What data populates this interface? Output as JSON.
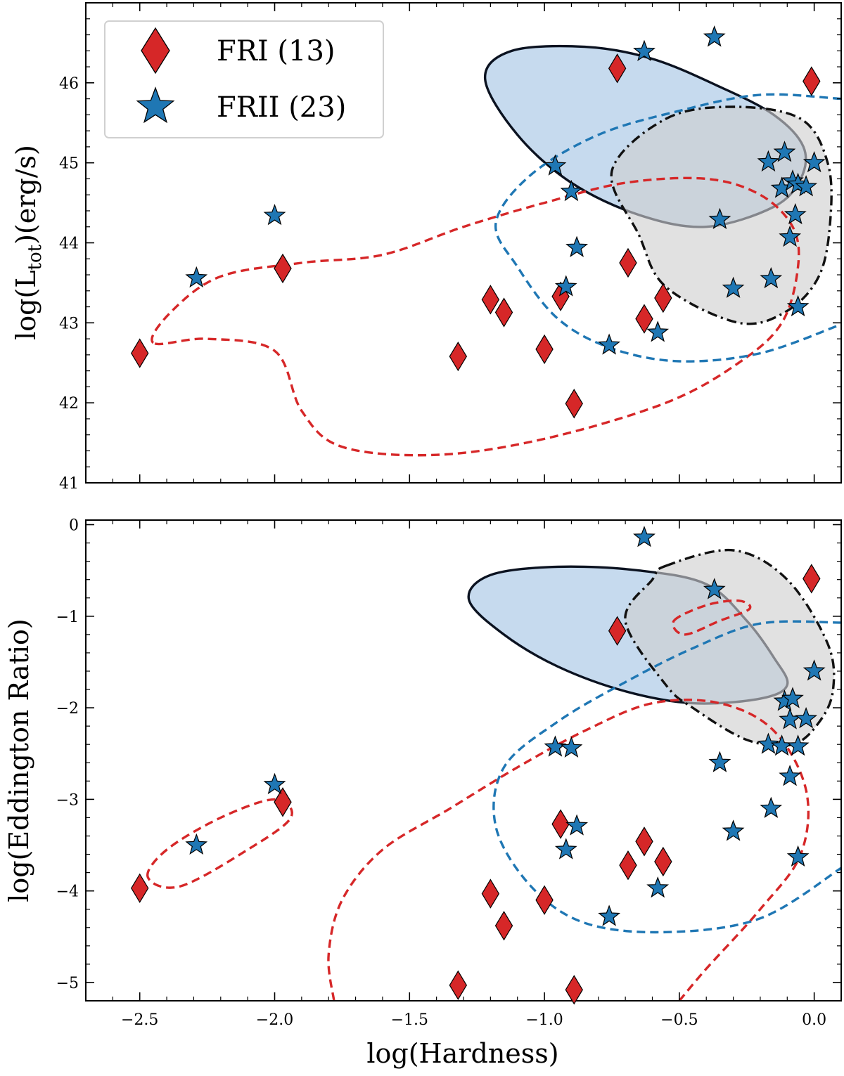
{
  "chart_data": [
    {
      "type": "scatter",
      "panel": "top",
      "ylabel_prefix": "log(L",
      "ylabel_sub": "tot",
      "ylabel_suffix": ")(erg/s)",
      "xlim": [
        -2.7,
        0.1
      ],
      "ylim": [
        41.0,
        47.0
      ],
      "yticks": [
        41,
        42,
        43,
        44,
        45,
        46
      ],
      "ytick_labels": [
        "41",
        "42",
        "43",
        "44",
        "45",
        "46"
      ],
      "legend": {
        "position": "top-left",
        "entries": [
          {
            "label": "FRI (13)",
            "marker": "diamond",
            "color": "#d62728"
          },
          {
            "label": "FRII (23)",
            "marker": "star",
            "color": "#1f77b4"
          }
        ]
      },
      "series": [
        {
          "name": "FRI (13)",
          "marker": "diamond",
          "color": "#d62728",
          "points": [
            [
              -2.5,
              42.62
            ],
            [
              -1.97,
              43.68
            ],
            [
              -1.32,
              42.58
            ],
            [
              -1.2,
              43.29
            ],
            [
              -1.15,
              43.13
            ],
            [
              -1.0,
              42.67
            ],
            [
              -0.94,
              43.33
            ],
            [
              -0.89,
              41.99
            ],
            [
              -0.73,
              46.18
            ],
            [
              -0.69,
              43.75
            ],
            [
              -0.63,
              43.05
            ],
            [
              -0.56,
              43.31
            ],
            [
              -0.01,
              46.02
            ]
          ]
        },
        {
          "name": "FRII (23)",
          "marker": "star",
          "color": "#1f77b4",
          "points": [
            [
              -2.29,
              43.56
            ],
            [
              -2.0,
              44.34
            ],
            [
              -0.96,
              44.96
            ],
            [
              -0.92,
              43.45
            ],
            [
              -0.9,
              44.64
            ],
            [
              -0.88,
              43.94
            ],
            [
              -0.76,
              42.72
            ],
            [
              -0.63,
              46.39
            ],
            [
              -0.58,
              42.88
            ],
            [
              -0.37,
              46.57
            ],
            [
              -0.35,
              44.29
            ],
            [
              -0.3,
              43.43
            ],
            [
              -0.17,
              45.01
            ],
            [
              -0.16,
              43.55
            ],
            [
              -0.12,
              44.68
            ],
            [
              -0.11,
              45.13
            ],
            [
              -0.09,
              44.07
            ],
            [
              -0.08,
              44.77
            ],
            [
              -0.07,
              44.35
            ],
            [
              -0.06,
              44.73
            ],
            [
              -0.06,
              43.2
            ],
            [
              -0.03,
              44.7
            ],
            [
              0.0,
              45.0
            ]
          ]
        }
      ],
      "contours": [
        {
          "name": "FRI contour",
          "style": "dashed",
          "color": "#d62728",
          "fill": "none",
          "path": [
            [
              -2.45,
              42.75
            ],
            [
              -2.38,
              43.15
            ],
            [
              -2.2,
              43.58
            ],
            [
              -1.9,
              43.75
            ],
            [
              -1.6,
              43.85
            ],
            [
              -1.3,
              44.2
            ],
            [
              -1.0,
              44.5
            ],
            [
              -0.7,
              44.75
            ],
            [
              -0.4,
              44.8
            ],
            [
              -0.2,
              44.6
            ],
            [
              -0.08,
              44.2
            ],
            [
              -0.06,
              43.7
            ],
            [
              -0.12,
              43.0
            ],
            [
              -0.28,
              42.5
            ],
            [
              -0.55,
              42.0
            ],
            [
              -1.0,
              41.55
            ],
            [
              -1.4,
              41.35
            ],
            [
              -1.75,
              41.45
            ],
            [
              -1.9,
              41.9
            ],
            [
              -2.0,
              42.65
            ],
            [
              -2.25,
              42.8
            ],
            [
              -2.45,
              42.75
            ]
          ]
        },
        {
          "name": "FRII contour",
          "style": "dashed",
          "color": "#1f77b4",
          "fill": "none",
          "path": [
            [
              0.1,
              45.8
            ],
            [
              -0.2,
              45.85
            ],
            [
              -0.5,
              45.65
            ],
            [
              -0.8,
              45.35
            ],
            [
              -1.05,
              44.85
            ],
            [
              -1.18,
              44.25
            ],
            [
              -1.1,
              43.7
            ],
            [
              -0.95,
              43.05
            ],
            [
              -0.75,
              42.68
            ],
            [
              -0.5,
              42.52
            ],
            [
              -0.2,
              42.62
            ],
            [
              0.1,
              42.98
            ]
          ]
        },
        {
          "name": "blue filled contour",
          "style": "solid",
          "color": "#0b1220",
          "fill": "#a3c4e3",
          "path": [
            [
              -0.85,
              46.45
            ],
            [
              -0.6,
              46.3
            ],
            [
              -0.35,
              45.95
            ],
            [
              -0.15,
              45.6
            ],
            [
              -0.04,
              45.2
            ],
            [
              -0.05,
              44.8
            ],
            [
              -0.15,
              44.45
            ],
            [
              -0.4,
              44.2
            ],
            [
              -0.65,
              44.35
            ],
            [
              -0.9,
              44.75
            ],
            [
              -1.1,
              45.35
            ],
            [
              -1.22,
              46.05
            ],
            [
              -1.12,
              46.4
            ],
            [
              -0.85,
              46.45
            ]
          ]
        },
        {
          "name": "grey filled contour",
          "style": "dashdot",
          "color": "#111111",
          "fill": "#cfcfcf",
          "path": [
            [
              -0.55,
              45.55
            ],
            [
              -0.3,
              45.7
            ],
            [
              -0.05,
              45.55
            ],
            [
              0.05,
              45.0
            ],
            [
              0.06,
              44.3
            ],
            [
              0.02,
              43.6
            ],
            [
              -0.1,
              43.15
            ],
            [
              -0.28,
              43.0
            ],
            [
              -0.55,
              43.45
            ],
            [
              -0.65,
              44.1
            ],
            [
              -0.75,
              44.9
            ],
            [
              -0.55,
              45.55
            ]
          ]
        }
      ]
    },
    {
      "type": "scatter",
      "panel": "bottom",
      "xlabel": "log(Hardness)",
      "ylabel": "log(Eddington Ratio)",
      "xlim": [
        -2.7,
        0.1
      ],
      "ylim": [
        -5.2,
        0.05
      ],
      "xticks": [
        -2.5,
        -2.0,
        -1.5,
        -1.0,
        -0.5,
        0.0
      ],
      "xtick_labels": [
        "−2.5",
        "−2.0",
        "−1.5",
        "−1.0",
        "−0.5",
        "0.0"
      ],
      "yticks": [
        -5,
        -4,
        -3,
        -2,
        -1,
        0
      ],
      "ytick_labels": [
        "−5",
        "−4",
        "−3",
        "−2",
        "−1",
        "0"
      ],
      "series": [
        {
          "name": "FRI (13)",
          "marker": "diamond",
          "color": "#d62728",
          "points": [
            [
              -2.5,
              -3.97
            ],
            [
              -1.97,
              -3.03
            ],
            [
              -1.32,
              -5.03
            ],
            [
              -1.2,
              -4.03
            ],
            [
              -1.15,
              -4.38
            ],
            [
              -1.0,
              -4.1
            ],
            [
              -0.94,
              -3.27
            ],
            [
              -0.89,
              -5.08
            ],
            [
              -0.73,
              -1.16
            ],
            [
              -0.69,
              -3.72
            ],
            [
              -0.63,
              -3.46
            ],
            [
              -0.56,
              -3.68
            ],
            [
              -0.01,
              -0.59
            ]
          ]
        },
        {
          "name": "FRII (23)",
          "marker": "star",
          "color": "#1f77b4",
          "points": [
            [
              -2.29,
              -3.5
            ],
            [
              -2.0,
              -2.84
            ],
            [
              -0.96,
              -2.43
            ],
            [
              -0.92,
              -3.55
            ],
            [
              -0.9,
              -2.44
            ],
            [
              -0.88,
              -3.29
            ],
            [
              -0.76,
              -4.28
            ],
            [
              -0.63,
              -0.14
            ],
            [
              -0.58,
              -3.97
            ],
            [
              -0.37,
              -0.71
            ],
            [
              -0.35,
              -2.6
            ],
            [
              -0.3,
              -3.35
            ],
            [
              -0.17,
              -2.4
            ],
            [
              -0.16,
              -3.1
            ],
            [
              -0.12,
              -2.42
            ],
            [
              -0.11,
              -1.93
            ],
            [
              -0.09,
              -2.75
            ],
            [
              -0.09,
              -2.13
            ],
            [
              -0.08,
              -1.9
            ],
            [
              -0.06,
              -2.42
            ],
            [
              -0.06,
              -3.63
            ],
            [
              -0.03,
              -2.12
            ],
            [
              0.0,
              -1.6
            ]
          ]
        }
      ],
      "contours": [
        {
          "name": "FRI large contour",
          "style": "dashed",
          "color": "#d62728",
          "fill": "none",
          "path": [
            [
              -1.78,
              -5.2
            ],
            [
              -1.8,
              -4.7
            ],
            [
              -1.75,
              -4.1
            ],
            [
              -1.6,
              -3.55
            ],
            [
              -1.35,
              -3.1
            ],
            [
              -1.1,
              -2.65
            ],
            [
              -0.85,
              -2.25
            ],
            [
              -0.6,
              -1.95
            ],
            [
              -0.35,
              -1.95
            ],
            [
              -0.15,
              -2.25
            ],
            [
              -0.03,
              -2.9
            ],
            [
              -0.05,
              -3.6
            ],
            [
              -0.2,
              -4.2
            ],
            [
              -0.4,
              -4.85
            ],
            [
              -0.5,
              -5.2
            ]
          ]
        },
        {
          "name": "FRI small contour",
          "style": "dashed",
          "color": "#d62728",
          "fill": "none",
          "path": [
            [
              -2.47,
              -3.85
            ],
            [
              -2.4,
              -3.55
            ],
            [
              -2.2,
              -3.2
            ],
            [
              -2.0,
              -3.0
            ],
            [
              -1.94,
              -3.2
            ],
            [
              -2.1,
              -3.55
            ],
            [
              -2.35,
              -3.95
            ],
            [
              -2.47,
              -3.85
            ]
          ]
        },
        {
          "name": "FRI tiny contour",
          "style": "dashed",
          "color": "#d62728",
          "fill": "none",
          "path": [
            [
              -0.52,
              -1.05
            ],
            [
              -0.4,
              -0.88
            ],
            [
              -0.28,
              -0.83
            ],
            [
              -0.24,
              -0.92
            ],
            [
              -0.35,
              -1.05
            ],
            [
              -0.48,
              -1.2
            ],
            [
              -0.52,
              -1.05
            ]
          ]
        },
        {
          "name": "FRII contour",
          "style": "dashed",
          "color": "#1f77b4",
          "fill": "none",
          "path": [
            [
              0.1,
              -1.07
            ],
            [
              -0.2,
              -1.08
            ],
            [
              -0.45,
              -1.35
            ],
            [
              -0.7,
              -1.72
            ],
            [
              -0.95,
              -2.15
            ],
            [
              -1.15,
              -2.65
            ],
            [
              -1.18,
              -3.3
            ],
            [
              -1.05,
              -3.95
            ],
            [
              -0.85,
              -4.35
            ],
            [
              -0.55,
              -4.45
            ],
            [
              -0.2,
              -4.3
            ],
            [
              0.1,
              -3.75
            ]
          ]
        },
        {
          "name": "blue filled contour",
          "style": "solid",
          "color": "#0b1220",
          "fill": "#a3c4e3",
          "path": [
            [
              -1.2,
              -0.55
            ],
            [
              -0.95,
              -0.46
            ],
            [
              -0.65,
              -0.5
            ],
            [
              -0.4,
              -0.65
            ],
            [
              -0.25,
              -1.05
            ],
            [
              -0.15,
              -1.45
            ],
            [
              -0.1,
              -1.75
            ],
            [
              -0.2,
              -1.9
            ],
            [
              -0.45,
              -1.95
            ],
            [
              -0.7,
              -1.82
            ],
            [
              -0.95,
              -1.55
            ],
            [
              -1.15,
              -1.2
            ],
            [
              -1.28,
              -0.82
            ],
            [
              -1.2,
              -0.55
            ]
          ]
        },
        {
          "name": "grey filled contour",
          "style": "dashdot",
          "color": "#111111",
          "fill": "#cfcfcf",
          "path": [
            [
              -0.55,
              -0.45
            ],
            [
              -0.3,
              -0.28
            ],
            [
              -0.1,
              -0.6
            ],
            [
              0.05,
              -1.3
            ],
            [
              0.07,
              -1.8
            ],
            [
              0.02,
              -2.15
            ],
            [
              -0.08,
              -2.4
            ],
            [
              -0.25,
              -2.35
            ],
            [
              -0.45,
              -2.0
            ],
            [
              -0.55,
              -1.75
            ],
            [
              -0.7,
              -1.05
            ],
            [
              -0.6,
              -0.6
            ],
            [
              -0.55,
              -0.45
            ]
          ]
        }
      ]
    }
  ]
}
